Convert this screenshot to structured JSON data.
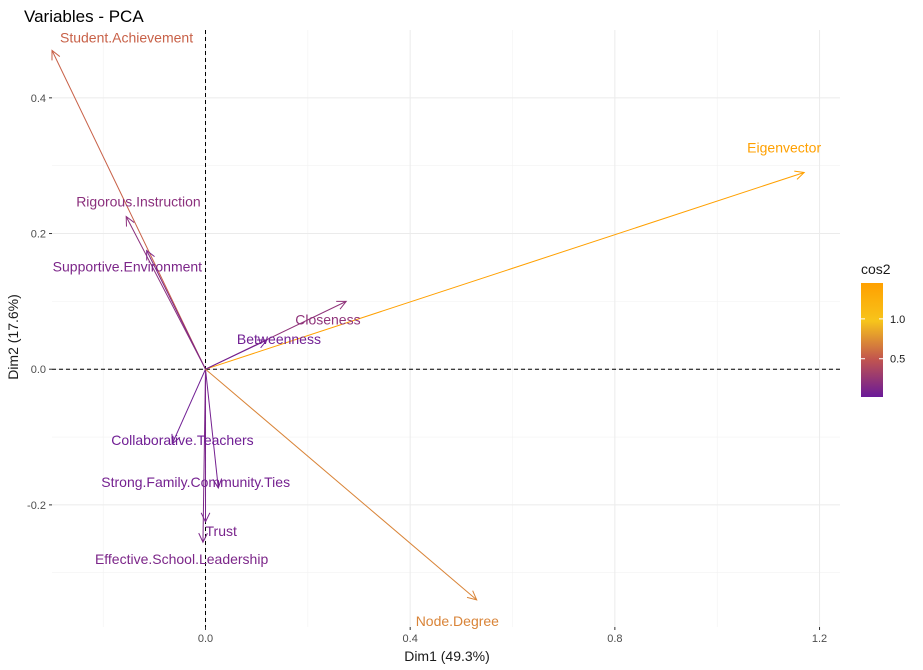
{
  "chart_data": {
    "type": "scatter",
    "title": "Variables - PCA",
    "xlabel": "Dim1 (49.3%)",
    "ylabel": "Dim2 (17.6%)",
    "xlim": [
      -0.3,
      1.24
    ],
    "ylim": [
      -0.38,
      0.5
    ],
    "xticks": [
      0.0,
      0.4,
      0.8,
      1.2
    ],
    "xtick_labels": [
      "0.0",
      "0.4",
      "0.8",
      "1.2"
    ],
    "yticks": [
      -0.2,
      0.0,
      0.2,
      0.4
    ],
    "ytick_labels": [
      "-0.2",
      "0.0",
      "0.2",
      "0.4"
    ],
    "grid": true,
    "reference_lines": {
      "x": 0,
      "y": 0,
      "style": "dashed"
    },
    "legend": {
      "title": "cos2",
      "placement": "right",
      "ticks": [
        0.5,
        1.0
      ],
      "tick_labels": [
        "0.5",
        "1.0"
      ],
      "range": [
        0.02,
        1.45
      ],
      "gradient": [
        "#6a1a99",
        "#c2554e",
        "#f7c41b",
        "#ffa000"
      ]
    },
    "vectors": [
      {
        "label": "Student.Achievement",
        "x": -0.3,
        "y": 0.47,
        "cos2": 0.55
      },
      {
        "label": "Eigenvector",
        "x": 1.17,
        "y": 0.29,
        "cos2": 1.45
      },
      {
        "label": "Rigorous.Instruction",
        "x": -0.155,
        "y": 0.225,
        "cos2": 0.2
      },
      {
        "label": "Supportive.Environment",
        "x": -0.115,
        "y": 0.175,
        "cos2": 0.12
      },
      {
        "label": "Closeness",
        "x": 0.275,
        "y": 0.1,
        "cos2": 0.22
      },
      {
        "label": "Betweenness",
        "x": 0.12,
        "y": 0.043,
        "cos2": 0.06
      },
      {
        "label": "Collaborative.Teachers",
        "x": -0.065,
        "y": -0.11,
        "cos2": 0.05
      },
      {
        "label": "Strong.Family.Community.Ties",
        "x": 0.025,
        "y": -0.175,
        "cos2": 0.08
      },
      {
        "label": "Trust",
        "x": 0.0,
        "y": -0.225,
        "cos2": 0.1
      },
      {
        "label": "Effective.School.Leadership",
        "x": -0.005,
        "y": -0.255,
        "cos2": 0.12
      },
      {
        "label": "Node.Degree",
        "x": 0.53,
        "y": -0.34,
        "cos2": 0.7
      }
    ]
  }
}
